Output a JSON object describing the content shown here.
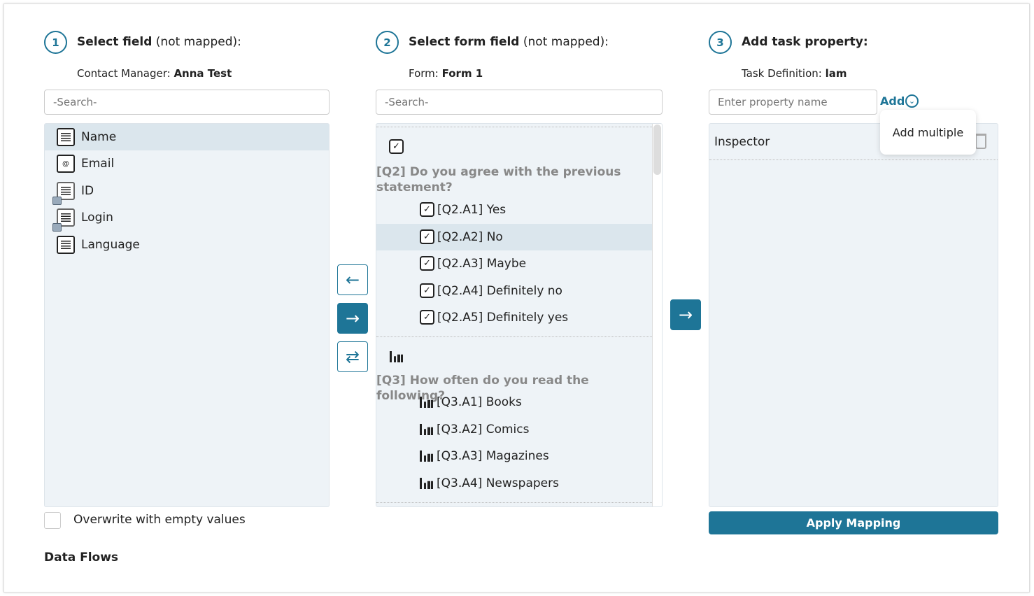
{
  "col1": {
    "step": "1",
    "title_bold": "Select field",
    "title_rest": " (not mapped):",
    "sub_label": "Contact Manager: ",
    "sub_value": "Anna Test",
    "search_placeholder": "-Search-",
    "items": [
      {
        "label": "Name",
        "icon": "text-field-icon"
      },
      {
        "label": "Email",
        "icon": "email-field-icon"
      },
      {
        "label": "ID",
        "icon": "locked-text-field-icon"
      },
      {
        "label": "Login",
        "icon": "locked-text-field-icon"
      },
      {
        "label": "Language",
        "icon": "text-field-icon"
      }
    ],
    "overwrite_label": "Overwrite with empty values"
  },
  "col2": {
    "step": "2",
    "title_bold": "Select form field",
    "title_rest": " (not mapped):",
    "sub_label": "Form: ",
    "sub_value": "Form 1",
    "search_placeholder": "-Search-",
    "q2": {
      "title": "[Q2] Do you agree with the previous statement?",
      "answers": [
        "[Q2.A1] Yes",
        "[Q2.A2] No",
        "[Q2.A3] Maybe",
        "[Q2.A4] Definitely no",
        "[Q2.A5] Definitely yes"
      ]
    },
    "q3": {
      "title": "[Q3] How often do you read the following?",
      "answers": [
        "[Q3.A1] Books",
        "[Q3.A2] Comics",
        "[Q3.A3] Magazines",
        "[Q3.A4] Newspapers"
      ]
    }
  },
  "col3": {
    "step": "3",
    "title_bold": "Add task property:",
    "sub_label": "Task Definition: ",
    "sub_value": "lam",
    "input_placeholder": "Enter property name",
    "add_label": "Add",
    "dropdown_item": "Add multiple",
    "properties": [
      "Inspector"
    ],
    "apply_label": "Apply Mapping"
  },
  "footer": {
    "data_flows": "Data Flows"
  },
  "colors": {
    "accent": "#1e7597",
    "list_bg": "#eef3f7",
    "selected_bg": "#dbe6ed"
  }
}
